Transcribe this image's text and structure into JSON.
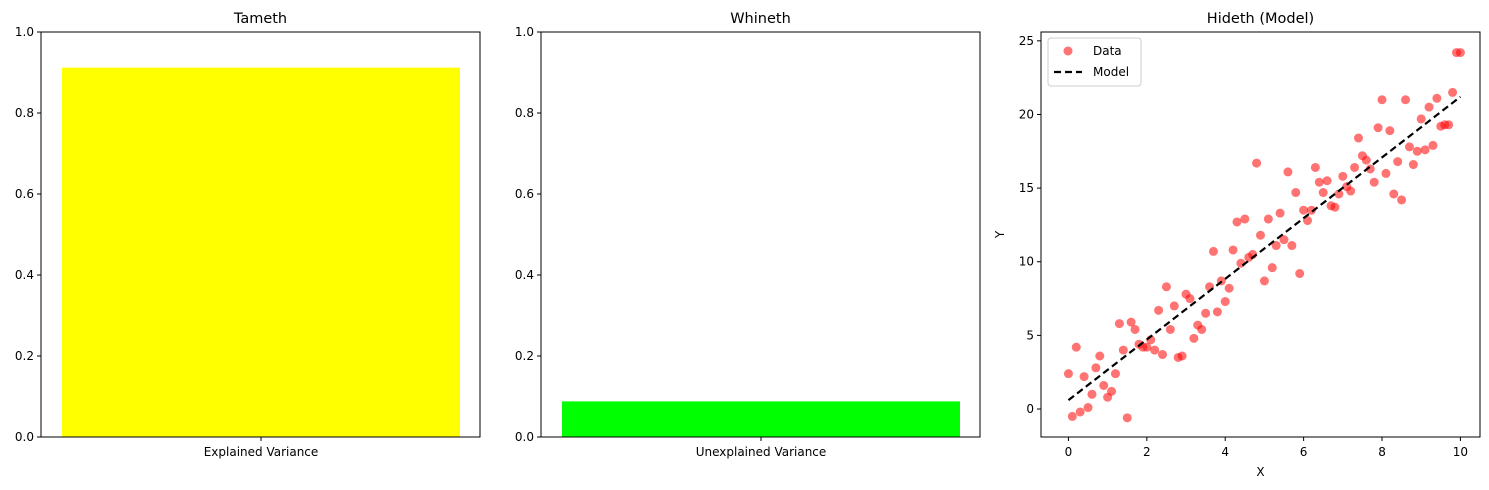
{
  "chart_data": [
    {
      "type": "bar",
      "title": "Tameth",
      "categories": [
        "Explained Variance"
      ],
      "values": [
        0.912
      ],
      "color": "#ffff00",
      "ylim": [
        0,
        1.0
      ],
      "yticks": [
        "0.0",
        "0.2",
        "0.4",
        "0.6",
        "0.8",
        "1.0"
      ],
      "xlabel": "",
      "ylabel": ""
    },
    {
      "type": "bar",
      "title": "Whineth",
      "categories": [
        "Unexplained Variance"
      ],
      "values": [
        0.088
      ],
      "color": "#00ff00",
      "ylim": [
        0,
        1.0
      ],
      "yticks": [
        "0.0",
        "0.2",
        "0.4",
        "0.6",
        "0.8",
        "1.0"
      ],
      "xlabel": "",
      "ylabel": ""
    },
    {
      "type": "scatter",
      "title": "Hideth (Model)",
      "xlabel": "X",
      "ylabel": "Y",
      "xlim": [
        -0.7,
        10.5
      ],
      "ylim": [
        -1.9,
        25.6
      ],
      "xticks": [
        "0",
        "2",
        "4",
        "6",
        "8",
        "10"
      ],
      "yticks": [
        "0",
        "5",
        "10",
        "15",
        "20",
        "25"
      ],
      "legend_position": "top-left",
      "series": [
        {
          "name": "Data",
          "kind": "scatter",
          "color": "#ff0000",
          "x": [
            0.0,
            0.1,
            0.2,
            0.3,
            0.4,
            0.5,
            0.6,
            0.7,
            0.8,
            0.9,
            1.0,
            1.1,
            1.2,
            1.3,
            1.4,
            1.5,
            1.6,
            1.7,
            1.8,
            1.9,
            2.0,
            2.1,
            2.2,
            2.3,
            2.4,
            2.5,
            2.6,
            2.7,
            2.8,
            2.9,
            3.0,
            3.1,
            3.2,
            3.3,
            3.4,
            3.5,
            3.6,
            3.7,
            3.8,
            3.9,
            4.0,
            4.1,
            4.2,
            4.3,
            4.4,
            4.5,
            4.6,
            4.7,
            4.8,
            4.9,
            5.0,
            5.1,
            5.2,
            5.3,
            5.4,
            5.5,
            5.6,
            5.7,
            5.8,
            5.9,
            6.0,
            6.1,
            6.2,
            6.3,
            6.4,
            6.5,
            6.6,
            6.7,
            6.8,
            6.9,
            7.0,
            7.1,
            7.2,
            7.3,
            7.4,
            7.5,
            7.6,
            7.7,
            7.8,
            7.9,
            8.0,
            8.1,
            8.2,
            8.3,
            8.4,
            8.5,
            8.6,
            8.7,
            8.8,
            8.9,
            9.0,
            9.1,
            9.2,
            9.3,
            9.4,
            9.5,
            9.6,
            9.7,
            9.8,
            9.9,
            10.0
          ],
          "y": [
            2.4,
            -0.5,
            4.2,
            -0.2,
            2.2,
            0.1,
            1.0,
            2.8,
            3.6,
            1.6,
            0.8,
            1.2,
            2.4,
            5.8,
            4.0,
            -0.6,
            5.9,
            5.4,
            4.4,
            4.2,
            4.2,
            4.7,
            4.0,
            6.7,
            3.7,
            8.3,
            5.4,
            7.0,
            3.5,
            3.6,
            7.8,
            7.5,
            4.8,
            5.7,
            5.4,
            6.5,
            8.3,
            10.7,
            6.6,
            8.7,
            7.3,
            8.2,
            10.8,
            12.7,
            9.9,
            12.9,
            10.3,
            10.5,
            16.7,
            11.8,
            8.7,
            12.9,
            9.6,
            11.1,
            13.3,
            11.5,
            16.1,
            11.1,
            14.7,
            9.2,
            13.5,
            12.8,
            13.5,
            16.4,
            15.4,
            14.7,
            15.5,
            13.8,
            13.7,
            14.6,
            15.8,
            15.1,
            14.8,
            16.4,
            18.4,
            17.2,
            16.9,
            16.3,
            15.4,
            19.1,
            21.0,
            16.0,
            18.9,
            14.6,
            16.8,
            14.2,
            21.0,
            17.8,
            16.6,
            17.5,
            19.7,
            17.6,
            20.5,
            17.9,
            21.1,
            19.2,
            19.3,
            19.3,
            21.5,
            24.2,
            24.2
          ]
        },
        {
          "name": "Model",
          "kind": "line",
          "color": "#000000",
          "x": [
            0,
            10
          ],
          "y": [
            0.6,
            21.2
          ]
        }
      ]
    }
  ]
}
